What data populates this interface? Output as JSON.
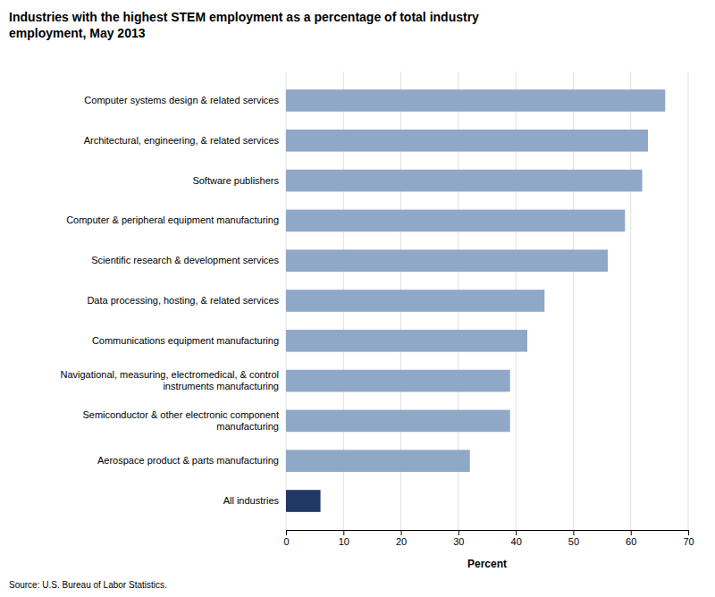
{
  "chart_data": {
    "type": "bar",
    "orientation": "horizontal",
    "title": "Industries with the highest STEM employment as a percentage of total industry\nemployment, May 2013",
    "categories": [
      "Computer systems design & related services",
      "Architectural, engineering, & related services",
      "Software publishers",
      "Computer & peripheral equipment manufacturing",
      "Scientific research & development services",
      "Data processing, hosting, & related services",
      "Communications equipment manufacturing",
      "Navigational, measuring, electromedical, & control\ninstruments manufacturing",
      "Semiconductor & other electronic component\nmanufacturing",
      "Aerospace product & parts manufacturing",
      "All industries"
    ],
    "values": [
      66,
      63,
      62,
      59,
      56,
      45,
      42,
      39,
      39,
      32,
      6
    ],
    "colors": [
      "#8fa8c8",
      "#8fa8c8",
      "#8fa8c8",
      "#8fa8c8",
      "#8fa8c8",
      "#8fa8c8",
      "#8fa8c8",
      "#8fa8c8",
      "#8fa8c8",
      "#8fa8c8",
      "#1f3864"
    ],
    "xlim": [
      0,
      70
    ],
    "xticks": [
      0,
      10,
      20,
      30,
      40,
      50,
      60,
      70
    ],
    "xlabel": "Percent",
    "source": "Source: U.S. Bureau of Labor Statistics.",
    "grid": true
  }
}
